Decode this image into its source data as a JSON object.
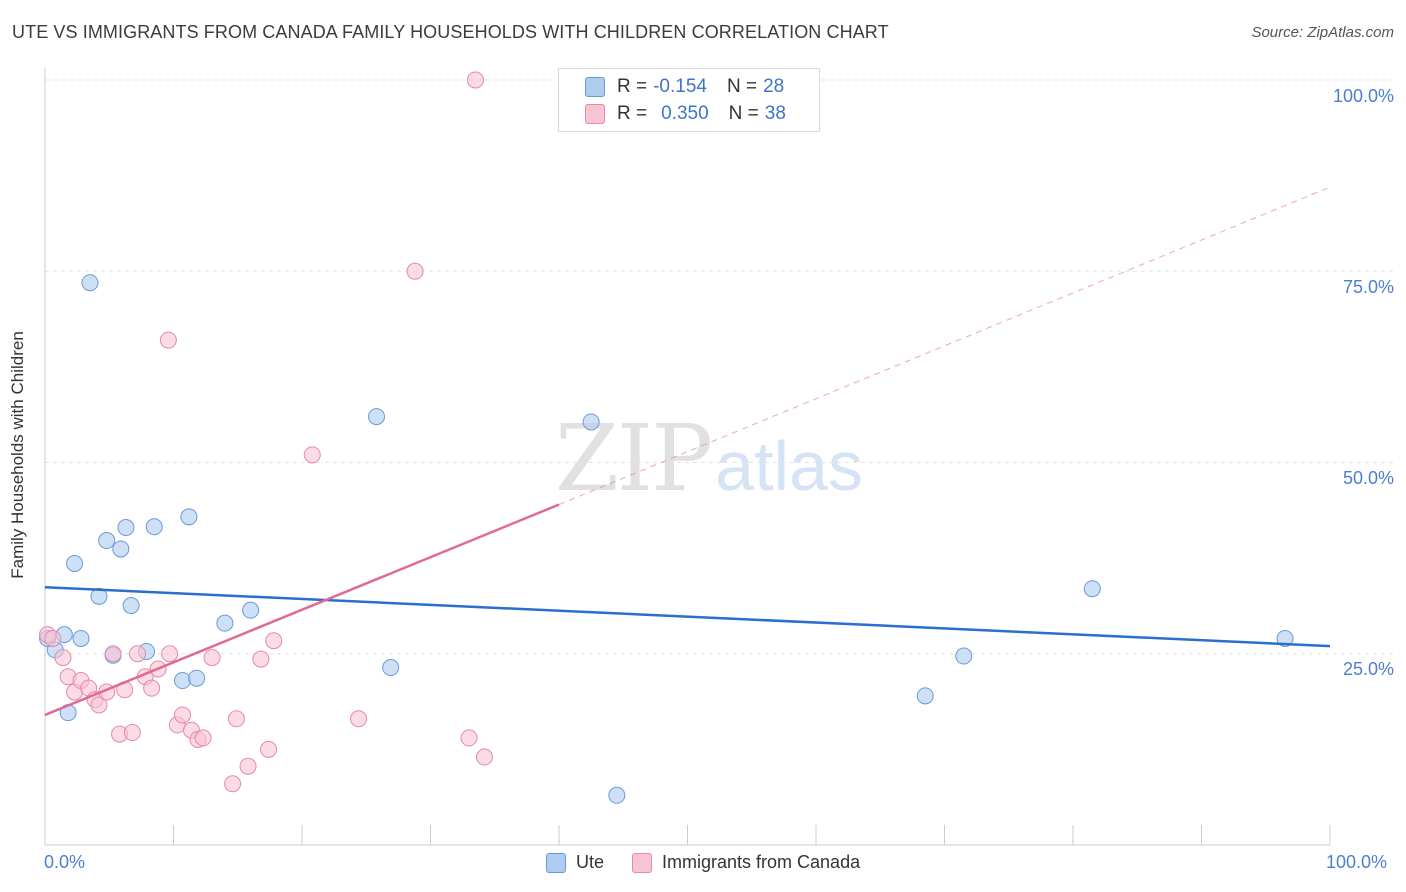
{
  "title": "UTE VS IMMIGRANTS FROM CANADA FAMILY HOUSEHOLDS WITH CHILDREN CORRELATION CHART",
  "source": "Source: ZipAtlas.com",
  "watermark": {
    "zip": "ZIP",
    "atlas": "atlas"
  },
  "colors": {
    "ute_fill": "#aecbf0",
    "ute_stroke": "#6a9ad8",
    "ute_line": "#2a6fcb",
    "can_fill": "#f8c3d3",
    "can_stroke": "#e58aa8",
    "can_line": "#e06a95",
    "grid": "#e3e3e3",
    "axis": "#cccccc",
    "tick_label": "#4d7fcf"
  },
  "legend_top": {
    "rows": [
      {
        "r_label": "R =",
        "r_value": "-0.154",
        "n_label": "N =",
        "n_value": "28"
      },
      {
        "r_label": "R =",
        "r_value": "0.350",
        "n_label": "N =",
        "n_value": "38"
      }
    ]
  },
  "legend_bottom": [
    "Ute",
    "Immigrants from Canada"
  ],
  "y_ticks": [
    "100.0%",
    "75.0%",
    "50.0%",
    "25.0%"
  ],
  "x_ticks": [
    "0.0%",
    "100.0%"
  ],
  "chart_data": {
    "type": "scatter",
    "title": "UTE VS IMMIGRANTS FROM CANADA FAMILY HOUSEHOLDS WITH CHILDREN CORRELATION CHART",
    "xlabel": "",
    "ylabel": "Family Households with Children",
    "xlim": [
      0,
      100
    ],
    "ylim": [
      0,
      100
    ],
    "y_tick_values": [
      25,
      50,
      75,
      100
    ],
    "grid": true,
    "legend_position": "top-center",
    "series": [
      {
        "name": "Ute",
        "R": -0.154,
        "N": 28,
        "trend": {
          "x0": 0,
          "y0": 33.7,
          "x1": 100,
          "y1": 26.0,
          "dashed_to": 100
        },
        "points": [
          [
            0.2,
            27.0
          ],
          [
            0.8,
            25.5
          ],
          [
            1.5,
            27.5
          ],
          [
            1.8,
            17.3
          ],
          [
            2.3,
            36.8
          ],
          [
            2.8,
            27.0
          ],
          [
            3.5,
            73.5
          ],
          [
            4.2,
            32.5
          ],
          [
            4.8,
            39.8
          ],
          [
            5.3,
            24.8
          ],
          [
            5.9,
            38.7
          ],
          [
            6.3,
            41.5
          ],
          [
            6.7,
            31.3
          ],
          [
            7.9,
            25.3
          ],
          [
            8.5,
            41.6
          ],
          [
            10.7,
            21.5
          ],
          [
            11.2,
            42.9
          ],
          [
            11.8,
            21.8
          ],
          [
            14.0,
            29.0
          ],
          [
            16.0,
            30.7
          ],
          [
            25.8,
            56.0
          ],
          [
            26.9,
            23.2
          ],
          [
            42.5,
            55.3
          ],
          [
            44.5,
            6.5
          ],
          [
            68.5,
            19.5
          ],
          [
            71.5,
            24.7
          ],
          [
            81.5,
            33.5
          ],
          [
            96.5,
            27.0
          ]
        ]
      },
      {
        "name": "Immigrants from Canada",
        "R": 0.35,
        "N": 38,
        "trend": {
          "x0": 0,
          "y0": 17.0,
          "x1": 40,
          "y1": 44.5,
          "dashed_to": 100,
          "dashed_y1": 86.0
        },
        "points": [
          [
            0.2,
            27.5
          ],
          [
            0.6,
            27.0
          ],
          [
            1.4,
            24.5
          ],
          [
            1.8,
            22.0
          ],
          [
            2.3,
            20.0
          ],
          [
            2.8,
            21.5
          ],
          [
            3.4,
            20.5
          ],
          [
            3.9,
            19.0
          ],
          [
            4.2,
            18.3
          ],
          [
            4.8,
            20.0
          ],
          [
            5.3,
            25.0
          ],
          [
            5.8,
            14.5
          ],
          [
            6.2,
            20.3
          ],
          [
            6.8,
            14.7
          ],
          [
            7.2,
            25.0
          ],
          [
            7.8,
            22.0
          ],
          [
            8.3,
            20.5
          ],
          [
            8.8,
            23.0
          ],
          [
            9.7,
            25.0
          ],
          [
            10.3,
            15.7
          ],
          [
            10.7,
            17.0
          ],
          [
            11.4,
            15.0
          ],
          [
            11.9,
            13.8
          ],
          [
            12.3,
            14.0
          ],
          [
            13.0,
            24.5
          ],
          [
            14.6,
            8.0
          ],
          [
            14.9,
            16.5
          ],
          [
            15.8,
            10.3
          ],
          [
            16.8,
            24.3
          ],
          [
            17.4,
            12.5
          ],
          [
            17.8,
            26.7
          ],
          [
            20.8,
            51.0
          ],
          [
            24.4,
            16.5
          ],
          [
            28.8,
            75.0
          ],
          [
            33.0,
            14.0
          ],
          [
            33.5,
            100.0
          ],
          [
            34.2,
            11.5
          ],
          [
            9.6,
            66.0
          ]
        ]
      }
    ]
  }
}
